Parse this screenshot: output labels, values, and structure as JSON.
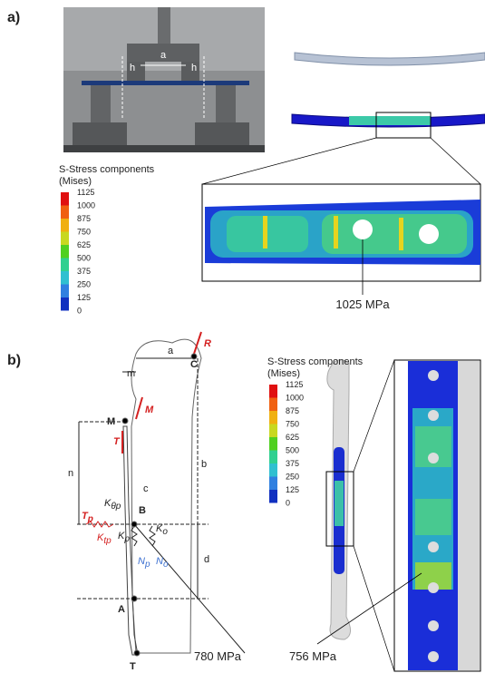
{
  "panel_a": {
    "label": "a)",
    "photo_labels": [
      "a",
      "h",
      "h"
    ],
    "legend": {
      "title": "S-Stress components",
      "subtitle": "(Mises)",
      "ticks": [
        1125,
        1000,
        875,
        750,
        625,
        500,
        375,
        250,
        125,
        0
      ]
    },
    "callout": "1025 MPa"
  },
  "panel_b": {
    "label": "b)",
    "labels": [
      "a",
      "m",
      "R",
      "C",
      "M",
      "M",
      "T",
      "b",
      "n",
      "c",
      "B",
      "d",
      "A",
      "T"
    ],
    "symbols": [
      {
        "base": "K",
        "sub": "θp"
      },
      {
        "base": "T",
        "sub": "p"
      },
      {
        "base": "K",
        "sub": "tp"
      },
      {
        "base": "K",
        "sub": "p"
      },
      {
        "base": "K",
        "sub": "o"
      },
      {
        "base": "N",
        "sub": "p"
      },
      {
        "base": "N",
        "sub": "o"
      }
    ],
    "legend": {
      "title": "S-Stress components",
      "subtitle": "(Mises)",
      "ticks": [
        1125,
        1000,
        875,
        750,
        625,
        500,
        375,
        250,
        125,
        0
      ]
    },
    "callouts": [
      "780 MPa",
      "756 MPa"
    ]
  }
}
